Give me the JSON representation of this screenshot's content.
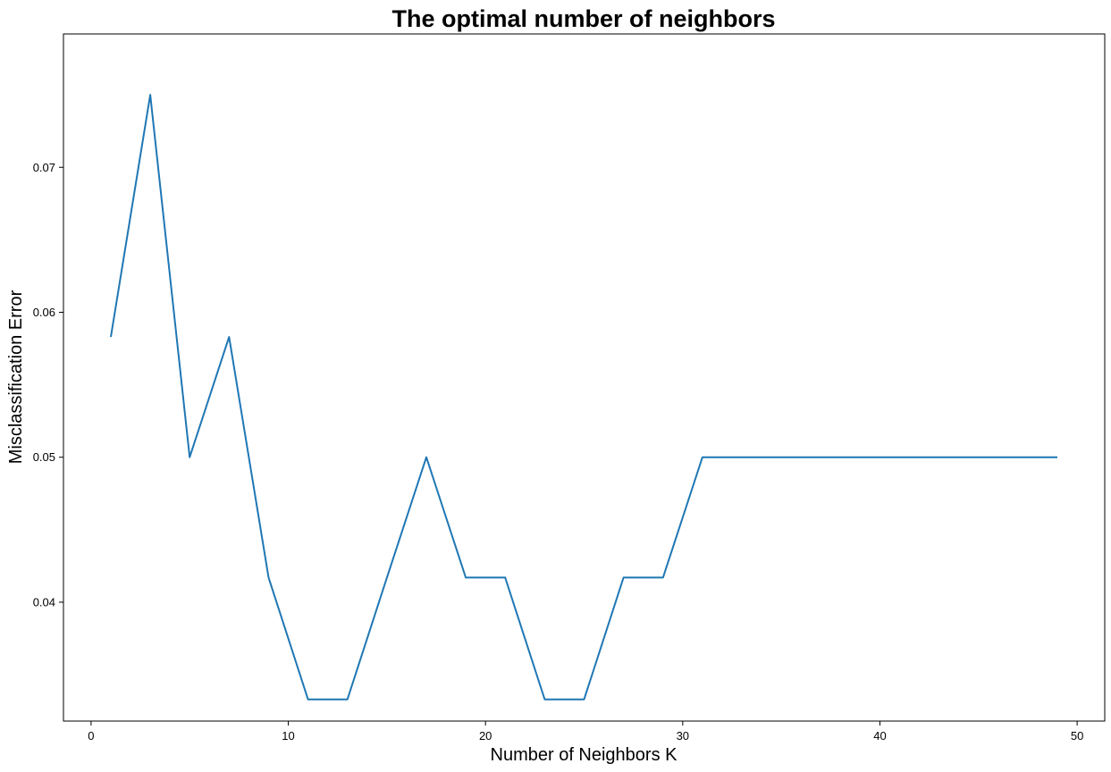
{
  "chart_data": {
    "type": "line",
    "title": "The optimal number of neighbors",
    "xlabel": "Number of Neighbors K",
    "ylabel": "Misclassification Error",
    "xlim": [
      -1.4,
      51.4
    ],
    "ylim": [
      0.0318,
      0.0792
    ],
    "xticks": [
      0,
      10,
      20,
      30,
      40,
      50
    ],
    "yticks": [
      0.04,
      0.05,
      0.06,
      0.07
    ],
    "xtick_labels": [
      "0",
      "10",
      "20",
      "30",
      "40",
      "50"
    ],
    "ytick_labels": [
      "0.04",
      "0.05",
      "0.06",
      "0.07"
    ],
    "grid": false,
    "legend": false,
    "series": [
      {
        "color": "#1f77b4",
        "x": [
          1,
          3,
          5,
          7,
          9,
          11,
          13,
          15,
          17,
          19,
          21,
          23,
          25,
          27,
          29,
          31,
          33,
          35,
          37,
          39,
          41,
          43,
          45,
          47,
          49
        ],
        "y": [
          0.0583,
          0.075,
          0.05,
          0.0583,
          0.0417,
          0.0333,
          0.0333,
          0.0417,
          0.05,
          0.0417,
          0.0417,
          0.0333,
          0.0333,
          0.0417,
          0.0417,
          0.05,
          0.05,
          0.05,
          0.05,
          0.05,
          0.05,
          0.05,
          0.05,
          0.05,
          0.05
        ]
      }
    ]
  }
}
